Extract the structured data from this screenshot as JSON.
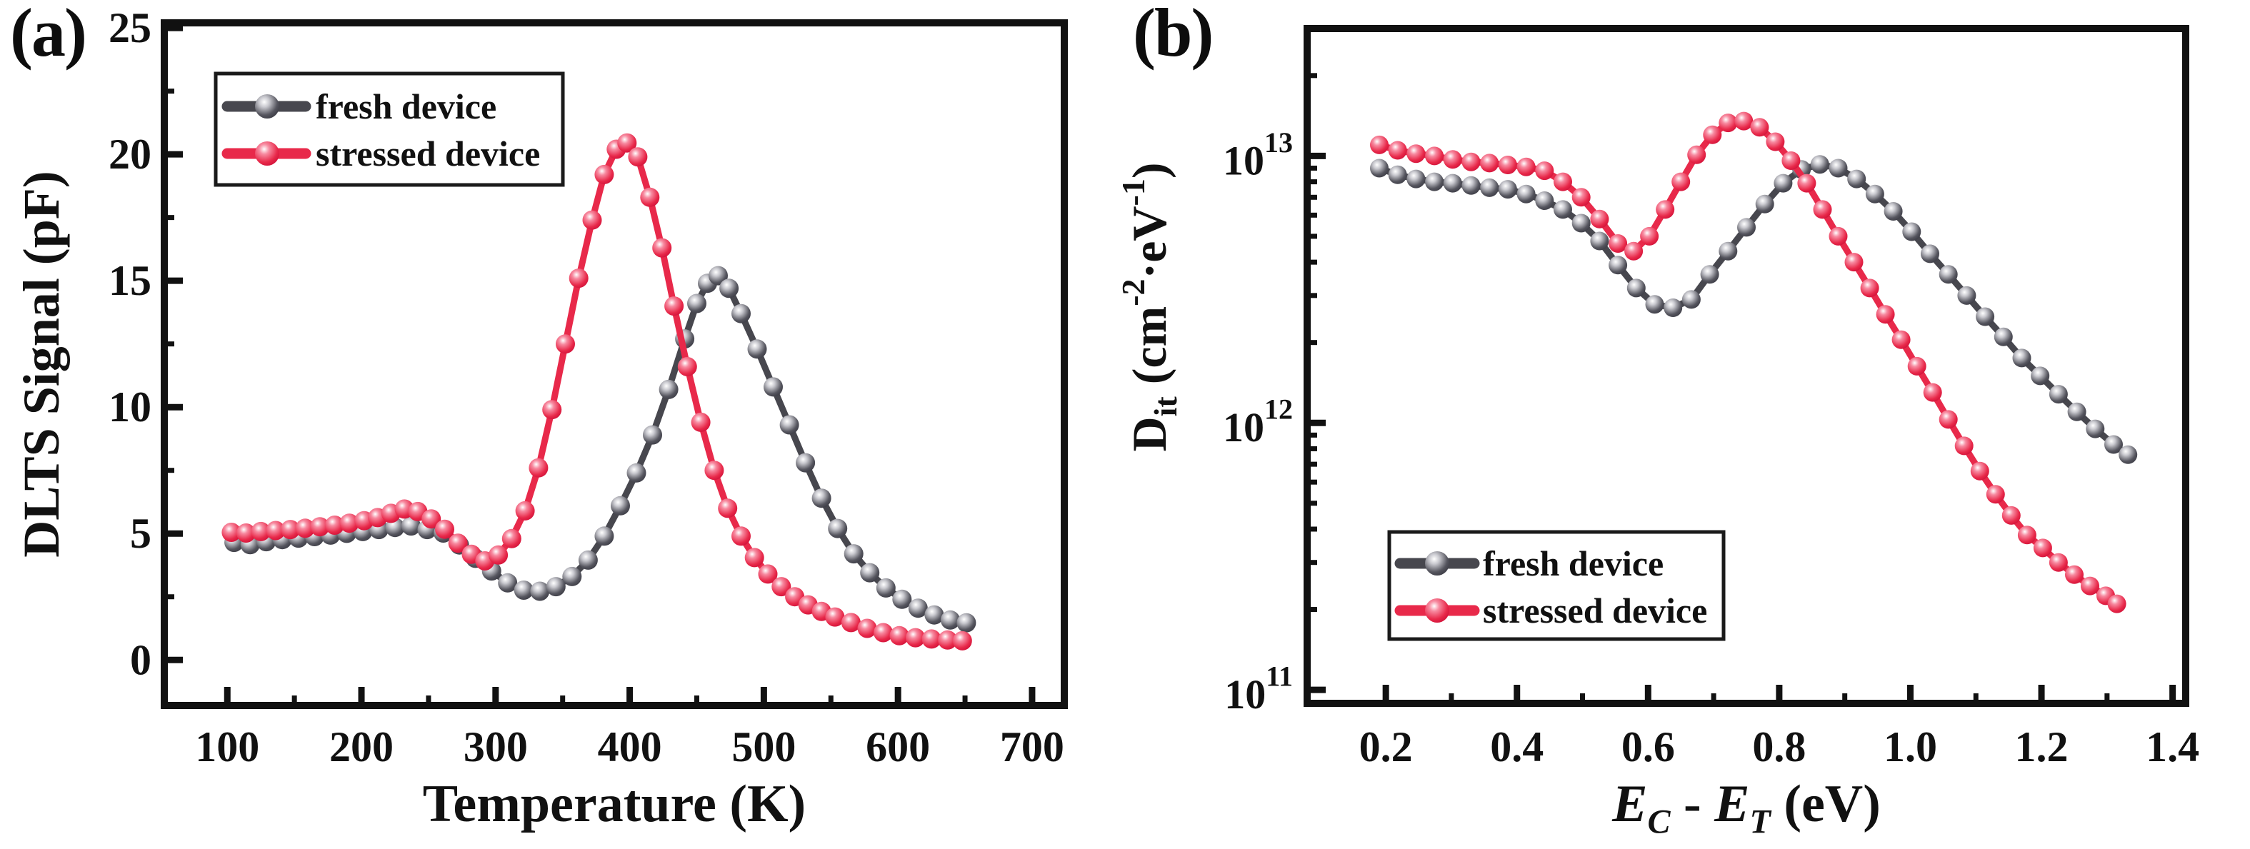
{
  "colors": {
    "fresh_device": "#47474e",
    "stressed_device": "#e8294a",
    "axis": "#111111",
    "legend_border": "#1a1a1a",
    "background": "#ffffff"
  },
  "panels": [
    {
      "letter": "(a)",
      "x_axis": {
        "title": "Temperature (K)",
        "tick_labels": [
          "100",
          "200",
          "300",
          "400",
          "500",
          "600",
          "700"
        ],
        "tick_values": [
          100,
          200,
          300,
          400,
          500,
          600,
          700
        ],
        "range": [
          53,
          724
        ],
        "scale": "linear"
      },
      "y_axis": {
        "title": "DLTS Signal (pF)",
        "tick_labels": [
          "0",
          "5",
          "10",
          "15",
          "20",
          "25"
        ],
        "tick_values": [
          0,
          5,
          10,
          15,
          20,
          25
        ],
        "range": [
          -1.8,
          25.2
        ],
        "scale": "linear"
      },
      "legend": {
        "items": [
          {
            "label": "fresh device",
            "series_key": "fresh_device"
          },
          {
            "label": "stressed device",
            "series_key": "stressed_device"
          }
        ]
      }
    },
    {
      "letter": "(b)",
      "x_axis": {
        "title_parts": [
          {
            "t": "E",
            "i": 1
          },
          {
            "t": "C",
            "i": 1,
            "v": "sub"
          },
          {
            "t": " - ",
            "i": 0
          },
          {
            "t": "E",
            "i": 1
          },
          {
            "t": "T",
            "i": 1,
            "v": "sub"
          },
          {
            "t": " (eV)",
            "i": 0
          }
        ],
        "title_text": "E_C - E_T (eV)",
        "tick_labels": [
          "0.2",
          "0.4",
          "0.6",
          "0.8",
          "1.0",
          "1.2",
          "1.4"
        ],
        "tick_values": [
          0.2,
          0.4,
          0.6,
          0.8,
          1.0,
          1.2,
          1.4
        ],
        "range": [
          0.08,
          1.42
        ],
        "scale": "linear"
      },
      "y_axis": {
        "title_parts": [
          {
            "t": "D"
          },
          {
            "t": "it",
            "v": "sub"
          },
          {
            "t": " (cm"
          },
          {
            "t": "-2",
            "v": "sup"
          },
          {
            "t": "·eV"
          },
          {
            "t": "-1",
            "v": "sup"
          },
          {
            "t": ")"
          }
        ],
        "title_text": "D_it (cm^-2 eV^-1)",
        "tick_exponents": [
          13,
          12,
          11
        ],
        "tick_values": [
          10000000000000.0,
          1000000000000.0,
          100000000000.0
        ],
        "range": [
          89000000000.0,
          30000000000000.0
        ],
        "scale": "log"
      },
      "legend": {
        "items": [
          {
            "label": "fresh device",
            "series_key": "fresh_device"
          },
          {
            "label": "stressed device",
            "series_key": "stressed_device"
          }
        ]
      }
    }
  ],
  "chart_data": [
    {
      "type": "line",
      "title": "",
      "xlabel": "Temperature (K)",
      "ylabel": "DLTS Signal (pF)",
      "xlim": [
        53,
        724
      ],
      "ylim": [
        -1.8,
        25.2
      ],
      "grid": false,
      "legend_position": "top-left",
      "series": [
        {
          "name": "fresh device",
          "key": "fresh_device",
          "color": "#47474e",
          "points": [
            [
              105,
              4.65
            ],
            [
              117,
              4.56
            ],
            [
              129,
              4.68
            ],
            [
              141,
              4.76
            ],
            [
              153,
              4.82
            ],
            [
              165,
              4.88
            ],
            [
              177,
              4.94
            ],
            [
              189,
              5.01
            ],
            [
              201,
              5.08
            ],
            [
              213,
              5.16
            ],
            [
              225,
              5.24
            ],
            [
              237,
              5.3
            ],
            [
              249,
              5.16
            ],
            [
              261,
              5.02
            ],
            [
              273,
              4.55
            ],
            [
              285,
              4.02
            ],
            [
              297,
              3.52
            ],
            [
              309,
              3.05
            ],
            [
              321,
              2.76
            ],
            [
              333,
              2.72
            ],
            [
              345,
              2.9
            ],
            [
              357,
              3.3
            ],
            [
              369,
              3.95
            ],
            [
              381,
              4.9
            ],
            [
              393,
              6.1
            ],
            [
              405,
              7.4
            ],
            [
              417,
              8.9
            ],
            [
              429,
              10.7
            ],
            [
              441,
              12.7
            ],
            [
              450,
              14.1
            ],
            [
              458,
              14.9
            ],
            [
              466,
              15.2
            ],
            [
              474,
              14.7
            ],
            [
              483,
              13.7
            ],
            [
              495,
              12.3
            ],
            [
              507,
              10.8
            ],
            [
              519,
              9.3
            ],
            [
              531,
              7.8
            ],
            [
              543,
              6.4
            ],
            [
              555,
              5.2
            ],
            [
              567,
              4.2
            ],
            [
              579,
              3.45
            ],
            [
              591,
              2.85
            ],
            [
              603,
              2.4
            ],
            [
              615,
              2.05
            ],
            [
              627,
              1.78
            ],
            [
              639,
              1.58
            ],
            [
              651,
              1.47
            ]
          ]
        },
        {
          "name": "stressed device",
          "key": "stressed_device",
          "color": "#e8294a",
          "points": [
            [
              103,
              5.05
            ],
            [
              114,
              5.02
            ],
            [
              125,
              5.08
            ],
            [
              136,
              5.12
            ],
            [
              147,
              5.16
            ],
            [
              158,
              5.21
            ],
            [
              169,
              5.27
            ],
            [
              180,
              5.33
            ],
            [
              191,
              5.41
            ],
            [
              202,
              5.51
            ],
            [
              212,
              5.63
            ],
            [
              222,
              5.8
            ],
            [
              232,
              5.97
            ],
            [
              242,
              5.87
            ],
            [
              252,
              5.58
            ],
            [
              262,
              5.17
            ],
            [
              272,
              4.62
            ],
            [
              282,
              4.18
            ],
            [
              292,
              3.92
            ],
            [
              302,
              4.15
            ],
            [
              312,
              4.8
            ],
            [
              322,
              5.9
            ],
            [
              332,
              7.6
            ],
            [
              342,
              9.9
            ],
            [
              352,
              12.5
            ],
            [
              362,
              15.1
            ],
            [
              372,
              17.4
            ],
            [
              381,
              19.2
            ],
            [
              390,
              20.2
            ],
            [
              398,
              20.45
            ],
            [
              406,
              19.9
            ],
            [
              415,
              18.3
            ],
            [
              424,
              16.3
            ],
            [
              433,
              14.0
            ],
            [
              443,
              11.6
            ],
            [
              453,
              9.4
            ],
            [
              463,
              7.5
            ],
            [
              473,
              6.0
            ],
            [
              483,
              4.9
            ],
            [
              493,
              4.05
            ],
            [
              503,
              3.4
            ],
            [
              513,
              2.9
            ],
            [
              523,
              2.5
            ],
            [
              533,
              2.18
            ],
            [
              543,
              1.92
            ],
            [
              553,
              1.7
            ],
            [
              565,
              1.48
            ],
            [
              577,
              1.25
            ],
            [
              589,
              1.08
            ],
            [
              601,
              0.96
            ],
            [
              613,
              0.88
            ],
            [
              625,
              0.83
            ],
            [
              637,
              0.79
            ],
            [
              648,
              0.76
            ]
          ]
        }
      ]
    },
    {
      "type": "line",
      "title": "",
      "xlabel": "E_C - E_T (eV)",
      "ylabel": "D_it (cm^-2 eV^-1)",
      "xlim": [
        0.08,
        1.42
      ],
      "ylim": [
        89000000000.0,
        30000000000000.0
      ],
      "yscale": "log",
      "grid": false,
      "legend_position": "bottom-left",
      "series": [
        {
          "name": "fresh device",
          "key": "fresh_device",
          "color": "#47474e",
          "points": [
            [
              0.19,
              9000000000000.0
            ],
            [
              0.218,
              8500000000000.0
            ],
            [
              0.246,
              8200000000000.0
            ],
            [
              0.274,
              8000000000000.0
            ],
            [
              0.302,
              7900000000000.0
            ],
            [
              0.33,
              7750000000000.0
            ],
            [
              0.358,
              7600000000000.0
            ],
            [
              0.386,
              7500000000000.0
            ],
            [
              0.414,
              7200000000000.0
            ],
            [
              0.442,
              6800000000000.0
            ],
            [
              0.47,
              6300000000000.0
            ],
            [
              0.498,
              5600000000000.0
            ],
            [
              0.526,
              4800000000000.0
            ],
            [
              0.554,
              3900000000000.0
            ],
            [
              0.582,
              3200000000000.0
            ],
            [
              0.61,
              2780000000000.0
            ],
            [
              0.638,
              2700000000000.0
            ],
            [
              0.666,
              2900000000000.0
            ],
            [
              0.694,
              3600000000000.0
            ],
            [
              0.722,
              4400000000000.0
            ],
            [
              0.75,
              5400000000000.0
            ],
            [
              0.778,
              6600000000000.0
            ],
            [
              0.806,
              7900000000000.0
            ],
            [
              0.834,
              8900000000000.0
            ],
            [
              0.862,
              9300000000000.0
            ],
            [
              0.89,
              9000000000000.0
            ],
            [
              0.918,
              8200000000000.0
            ],
            [
              0.946,
              7200000000000.0
            ],
            [
              0.974,
              6200000000000.0
            ],
            [
              1.002,
              5200000000000.0
            ],
            [
              1.03,
              4300000000000.0
            ],
            [
              1.058,
              3600000000000.0
            ],
            [
              1.086,
              3000000000000.0
            ],
            [
              1.114,
              2500000000000.0
            ],
            [
              1.142,
              2100000000000.0
            ],
            [
              1.17,
              1750000000000.0
            ],
            [
              1.198,
              1500000000000.0
            ],
            [
              1.226,
              1280000000000.0
            ],
            [
              1.254,
              1100000000000.0
            ],
            [
              1.282,
              950000000000.0
            ],
            [
              1.31,
              830000000000.0
            ],
            [
              1.332,
              760000000000.0
            ]
          ]
        },
        {
          "name": "stressed device",
          "key": "stressed_device",
          "color": "#e8294a",
          "points": [
            [
              0.19,
              11000000000000.0
            ],
            [
              0.218,
              10500000000000.0
            ],
            [
              0.246,
              10200000000000.0
            ],
            [
              0.274,
              10000000000000.0
            ],
            [
              0.302,
              9700000000000.0
            ],
            [
              0.33,
              9500000000000.0
            ],
            [
              0.358,
              9400000000000.0
            ],
            [
              0.386,
              9250000000000.0
            ],
            [
              0.414,
              9100000000000.0
            ],
            [
              0.442,
              8800000000000.0
            ],
            [
              0.47,
              8000000000000.0
            ],
            [
              0.498,
              7000000000000.0
            ],
            [
              0.526,
              5800000000000.0
            ],
            [
              0.554,
              4700000000000.0
            ],
            [
              0.578,
              4400000000000.0
            ],
            [
              0.602,
              5000000000000.0
            ],
            [
              0.626,
              6300000000000.0
            ],
            [
              0.65,
              8000000000000.0
            ],
            [
              0.674,
              10100000000000.0
            ],
            [
              0.698,
              12000000000000.0
            ],
            [
              0.722,
              13300000000000.0
            ],
            [
              0.746,
              13500000000000.0
            ],
            [
              0.77,
              12800000000000.0
            ],
            [
              0.794,
              11300000000000.0
            ],
            [
              0.818,
              9600000000000.0
            ],
            [
              0.842,
              7900000000000.0
            ],
            [
              0.866,
              6300000000000.0
            ],
            [
              0.89,
              5000000000000.0
            ],
            [
              0.914,
              4000000000000.0
            ],
            [
              0.938,
              3200000000000.0
            ],
            [
              0.962,
              2550000000000.0
            ],
            [
              0.986,
              2050000000000.0
            ],
            [
              1.01,
              1630000000000.0
            ],
            [
              1.034,
              1300000000000.0
            ],
            [
              1.058,
              1030000000000.0
            ],
            [
              1.082,
              820000000000.0
            ],
            [
              1.106,
              660000000000.0
            ],
            [
              1.13,
              540000000000.0
            ],
            [
              1.154,
              450000000000.0
            ],
            [
              1.178,
              380000000000.0
            ],
            [
              1.202,
              340000000000.0
            ],
            [
              1.226,
              300000000000.0
            ],
            [
              1.25,
              270000000000.0
            ],
            [
              1.274,
              245000000000.0
            ],
            [
              1.298,
              225000000000.0
            ],
            [
              1.315,
              210000000000.0
            ]
          ]
        }
      ]
    }
  ]
}
